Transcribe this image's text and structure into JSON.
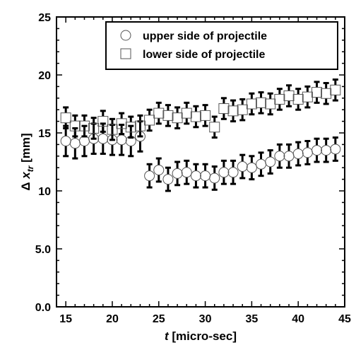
{
  "chart_data": {
    "type": "scatter",
    "xlabel": {
      "italic": "t",
      "rest": " [micro-sec]"
    },
    "ylabel": {
      "prefix": "Δ ",
      "italic": "x",
      "subscript": "tr",
      "suffix": " [mm]"
    },
    "xlim": [
      14,
      45
    ],
    "ylim": [
      0,
      25
    ],
    "x_ticks": [
      15,
      20,
      25,
      30,
      35,
      40,
      45
    ],
    "y_ticks": [
      0,
      5,
      10,
      15,
      20,
      25
    ],
    "y_tick_labels": [
      "0.0",
      "5.0",
      "10",
      "15",
      "20",
      "25"
    ],
    "legend_position": "top-right",
    "series": [
      {
        "name": "upper side of projectile",
        "marker": "circle",
        "x": [
          15,
          16,
          17,
          18,
          19,
          20,
          21,
          22,
          23,
          24,
          25,
          26,
          27,
          28,
          29,
          30,
          31,
          32,
          33,
          34,
          35,
          36,
          37,
          38,
          39,
          40,
          41,
          42,
          43,
          44
        ],
        "y": [
          14.3,
          14.1,
          14.3,
          14.5,
          14.5,
          14.4,
          14.4,
          14.3,
          14.7,
          11.3,
          11.8,
          11.0,
          11.5,
          11.6,
          11.3,
          11.3,
          11.1,
          11.6,
          11.6,
          12.1,
          12.0,
          12.3,
          12.5,
          13.0,
          13.0,
          13.2,
          13.3,
          13.5,
          13.5,
          13.6
        ],
        "error": [
          1.3,
          1.3,
          1.3,
          1.3,
          1.3,
          1.3,
          1.3,
          1.3,
          1.3,
          1.0,
          1.0,
          1.0,
          1.0,
          1.0,
          1.0,
          1.0,
          1.0,
          1.0,
          1.0,
          1.0,
          1.0,
          1.0,
          1.0,
          1.0,
          1.0,
          1.0,
          1.0,
          1.0,
          1.0,
          1.0
        ]
      },
      {
        "name": "lower side of projectile",
        "marker": "square",
        "x": [
          15,
          16,
          17,
          18,
          19,
          20,
          21,
          22,
          23,
          24,
          25,
          26,
          27,
          28,
          29,
          30,
          31,
          32,
          33,
          34,
          35,
          36,
          37,
          38,
          39,
          40,
          41,
          42,
          43,
          44
        ],
        "y": [
          16.3,
          15.6,
          15.6,
          15.4,
          16.0,
          15.3,
          15.8,
          15.5,
          15.6,
          16.1,
          16.7,
          16.5,
          16.3,
          16.7,
          16.4,
          16.5,
          15.5,
          17.1,
          16.9,
          17.0,
          17.5,
          17.6,
          17.5,
          17.9,
          18.2,
          17.9,
          18.1,
          18.5,
          18.4,
          18.7
        ],
        "error": [
          0.9,
          0.9,
          0.9,
          0.9,
          0.9,
          0.9,
          0.9,
          0.9,
          0.9,
          0.9,
          0.9,
          0.9,
          0.9,
          0.9,
          0.9,
          0.9,
          0.9,
          0.9,
          0.9,
          0.9,
          0.9,
          0.9,
          0.9,
          0.9,
          0.9,
          0.9,
          0.9,
          0.9,
          0.9,
          0.9
        ]
      }
    ]
  }
}
